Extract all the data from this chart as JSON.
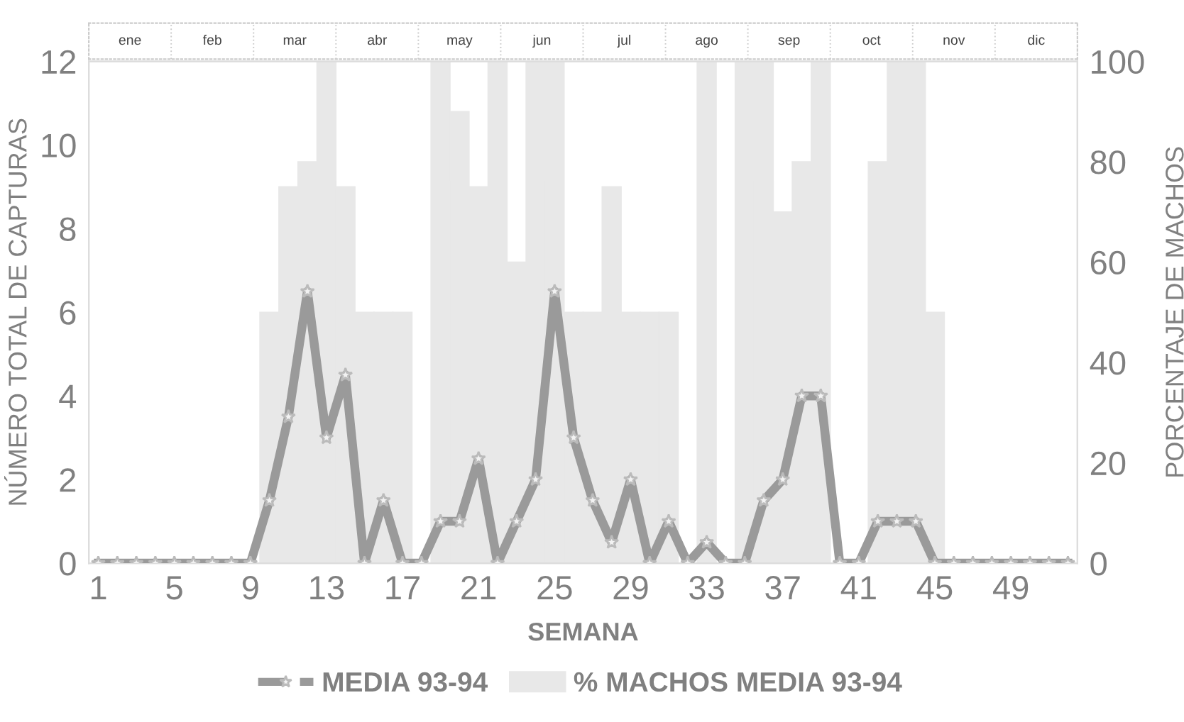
{
  "chart_data": {
    "type": "line",
    "xlabel": "SEMANA",
    "ylabel": "NÚMERO TOTAL DE CAPTURAS",
    "y2label": "PORCENTAJE DE MACHOS",
    "x": [
      1,
      2,
      3,
      4,
      5,
      6,
      7,
      8,
      9,
      10,
      11,
      12,
      13,
      14,
      15,
      16,
      17,
      18,
      19,
      20,
      21,
      22,
      23,
      24,
      25,
      26,
      27,
      28,
      29,
      30,
      31,
      32,
      33,
      34,
      35,
      36,
      37,
      38,
      39,
      40,
      41,
      42,
      43,
      44,
      45,
      46,
      47,
      48,
      49,
      50,
      51,
      52
    ],
    "series": [
      {
        "name": "MEDIA 93-94",
        "color": "#9a9a9a",
        "marker": "star",
        "values": [
          0,
          0,
          0,
          0,
          0,
          0,
          0,
          0,
          0,
          1.5,
          3.5,
          6.5,
          3,
          4.5,
          0,
          1.5,
          0,
          0,
          1,
          1,
          2.5,
          0,
          1,
          2,
          6.5,
          3,
          1.5,
          0.5,
          2,
          0,
          1,
          0,
          0.5,
          0,
          0,
          1.5,
          2,
          4,
          4,
          0,
          0,
          1,
          1,
          1,
          0,
          0,
          0,
          0,
          0,
          0,
          0,
          0
        ]
      },
      {
        "name": "% MACHOS MEDIA 93-94",
        "type": "bar",
        "axis": "y2",
        "color": "#e8e8e8",
        "values": [
          0,
          0,
          0,
          0,
          0,
          0,
          0,
          0,
          0,
          50,
          75,
          80,
          100,
          75,
          50,
          50,
          50,
          0,
          100,
          90,
          75,
          100,
          60,
          100,
          100,
          50,
          50,
          75,
          50,
          50,
          50,
          0,
          100,
          0,
          100,
          100,
          70,
          80,
          100,
          0,
          0,
          80,
          100,
          100,
          50,
          0,
          0,
          0,
          0,
          0,
          0,
          0
        ]
      }
    ],
    "xlim": [
      0.5,
      52.5
    ],
    "xticks": [
      1,
      5,
      9,
      13,
      17,
      21,
      25,
      29,
      33,
      37,
      41,
      45,
      49
    ],
    "ylim": [
      0,
      12
    ],
    "yticks": [
      0,
      2,
      4,
      6,
      8,
      10,
      12
    ],
    "y2lim": [
      0,
      100
    ],
    "y2ticks": [
      0,
      20,
      40,
      60,
      80,
      100
    ],
    "grid": false,
    "legend": "bottom",
    "annotations": [
      "ene",
      "feb",
      "mar",
      "abr",
      "may",
      "jun",
      "jul",
      "ago",
      "sep",
      "oct",
      "nov",
      "dic"
    ]
  }
}
